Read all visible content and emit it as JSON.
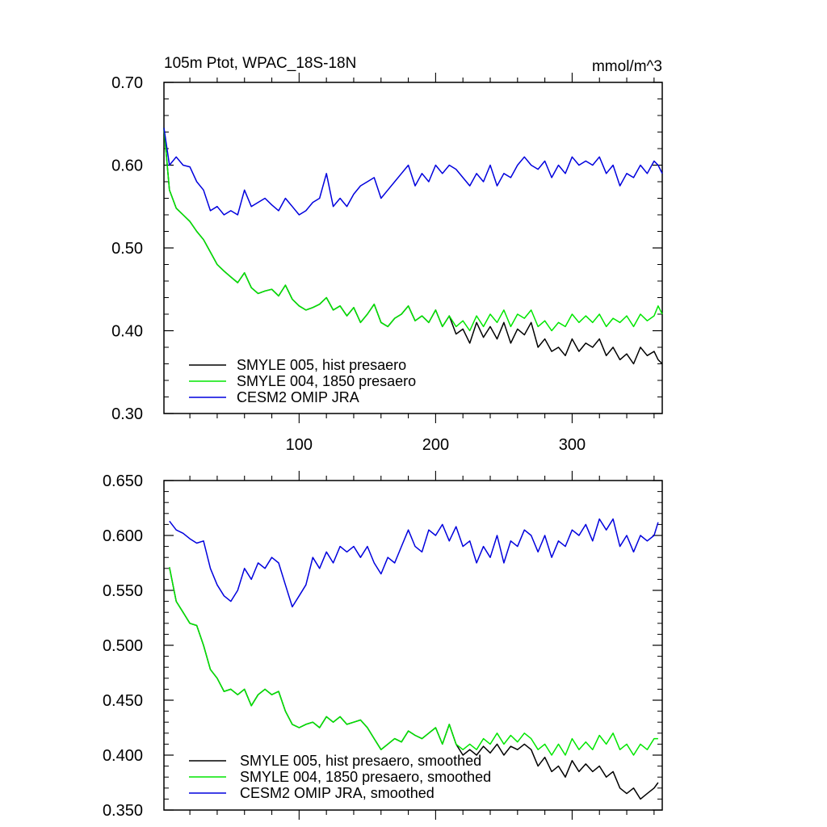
{
  "chart_data": [
    {
      "type": "line",
      "title": "105m Ptot, WPAC_18S-18N",
      "units": "mmol/m^3",
      "xlim": [
        1,
        366
      ],
      "ylim": [
        0.3,
        0.7
      ],
      "x_ticks": [
        "100",
        "200",
        "300"
      ],
      "y_ticks": [
        "0.30",
        "0.40",
        "0.50",
        "0.60",
        "0.70"
      ],
      "legend_position": "bottom-left",
      "series": [
        {
          "name": "SMYLE 005, hist presaero",
          "color": "#000000",
          "x": [
            1,
            5,
            10,
            15,
            20,
            25,
            30,
            35,
            40,
            45,
            50,
            55,
            60,
            65,
            70,
            75,
            80,
            85,
            90,
            95,
            100,
            105,
            110,
            115,
            120,
            125,
            130,
            135,
            140,
            145,
            150,
            155,
            160,
            165,
            170,
            175,
            180,
            185,
            190,
            195,
            200,
            205,
            210,
            215,
            220,
            225,
            230,
            235,
            240,
            245,
            250,
            255,
            260,
            265,
            270,
            275,
            280,
            285,
            290,
            295,
            300,
            305,
            310,
            315,
            320,
            325,
            330,
            335,
            340,
            345,
            350,
            355,
            360,
            363,
            366
          ],
          "y": [
            0.645,
            0.57,
            0.548,
            0.54,
            0.532,
            0.52,
            0.51,
            0.495,
            0.48,
            0.472,
            0.465,
            0.458,
            0.47,
            0.452,
            0.445,
            0.448,
            0.45,
            0.442,
            0.455,
            0.438,
            0.43,
            0.425,
            0.428,
            0.432,
            0.44,
            0.425,
            0.43,
            0.418,
            0.428,
            0.41,
            0.42,
            0.432,
            0.41,
            0.405,
            0.415,
            0.42,
            0.43,
            0.412,
            0.418,
            0.41,
            0.425,
            0.405,
            0.418,
            0.396,
            0.402,
            0.385,
            0.41,
            0.392,
            0.405,
            0.39,
            0.41,
            0.385,
            0.402,
            0.395,
            0.41,
            0.38,
            0.39,
            0.375,
            0.38,
            0.37,
            0.39,
            0.375,
            0.385,
            0.38,
            0.39,
            0.37,
            0.38,
            0.365,
            0.372,
            0.36,
            0.38,
            0.37,
            0.375,
            0.365,
            0.36
          ]
        },
        {
          "name": "SMYLE 004, 1850 presaero",
          "color": "#00e600",
          "x": [
            1,
            5,
            10,
            15,
            20,
            25,
            30,
            35,
            40,
            45,
            50,
            55,
            60,
            65,
            70,
            75,
            80,
            85,
            90,
            95,
            100,
            105,
            110,
            115,
            120,
            125,
            130,
            135,
            140,
            145,
            150,
            155,
            160,
            165,
            170,
            175,
            180,
            185,
            190,
            195,
            200,
            205,
            210,
            215,
            220,
            225,
            230,
            235,
            240,
            245,
            250,
            255,
            260,
            265,
            270,
            275,
            280,
            285,
            290,
            295,
            300,
            305,
            310,
            315,
            320,
            325,
            330,
            335,
            340,
            345,
            350,
            355,
            360,
            363,
            366
          ],
          "y": [
            0.645,
            0.57,
            0.548,
            0.54,
            0.532,
            0.52,
            0.51,
            0.495,
            0.48,
            0.472,
            0.465,
            0.458,
            0.47,
            0.452,
            0.445,
            0.448,
            0.45,
            0.442,
            0.455,
            0.438,
            0.43,
            0.425,
            0.428,
            0.432,
            0.44,
            0.425,
            0.43,
            0.418,
            0.428,
            0.41,
            0.42,
            0.432,
            0.41,
            0.405,
            0.415,
            0.42,
            0.43,
            0.412,
            0.418,
            0.41,
            0.425,
            0.405,
            0.418,
            0.405,
            0.412,
            0.4,
            0.418,
            0.405,
            0.42,
            0.41,
            0.425,
            0.405,
            0.42,
            0.415,
            0.425,
            0.405,
            0.412,
            0.4,
            0.41,
            0.405,
            0.42,
            0.41,
            0.418,
            0.41,
            0.42,
            0.405,
            0.415,
            0.41,
            0.418,
            0.405,
            0.42,
            0.412,
            0.418,
            0.43,
            0.42
          ]
        },
        {
          "name": "CESM2 OMIP JRA",
          "color": "#0000dd",
          "x": [
            1,
            5,
            10,
            15,
            20,
            25,
            30,
            35,
            40,
            45,
            50,
            55,
            60,
            65,
            70,
            75,
            80,
            85,
            90,
            95,
            100,
            105,
            110,
            115,
            120,
            125,
            130,
            135,
            140,
            145,
            150,
            155,
            160,
            165,
            170,
            175,
            180,
            185,
            190,
            195,
            200,
            205,
            210,
            215,
            220,
            225,
            230,
            235,
            240,
            245,
            250,
            255,
            260,
            265,
            270,
            275,
            280,
            285,
            290,
            295,
            300,
            305,
            310,
            315,
            320,
            325,
            330,
            335,
            340,
            345,
            350,
            355,
            360,
            363,
            366
          ],
          "y": [
            0.645,
            0.6,
            0.61,
            0.6,
            0.598,
            0.58,
            0.57,
            0.545,
            0.55,
            0.54,
            0.545,
            0.54,
            0.57,
            0.55,
            0.555,
            0.56,
            0.552,
            0.545,
            0.56,
            0.55,
            0.54,
            0.545,
            0.555,
            0.56,
            0.59,
            0.55,
            0.56,
            0.55,
            0.565,
            0.575,
            0.58,
            0.585,
            0.56,
            0.57,
            0.58,
            0.59,
            0.6,
            0.575,
            0.59,
            0.58,
            0.6,
            0.59,
            0.6,
            0.595,
            0.585,
            0.575,
            0.59,
            0.58,
            0.6,
            0.575,
            0.59,
            0.585,
            0.6,
            0.61,
            0.6,
            0.595,
            0.605,
            0.585,
            0.6,
            0.59,
            0.61,
            0.6,
            0.605,
            0.6,
            0.61,
            0.59,
            0.6,
            0.575,
            0.59,
            0.585,
            0.6,
            0.59,
            0.605,
            0.6,
            0.59
          ]
        }
      ]
    },
    {
      "type": "line",
      "xlim": [
        1,
        366
      ],
      "ylim": [
        0.35,
        0.65
      ],
      "x_ticks": [],
      "y_ticks": [
        "0.350",
        "0.400",
        "0.450",
        "0.500",
        "0.550",
        "0.600",
        "0.650"
      ],
      "legend_position": "bottom-left",
      "series": [
        {
          "name": "SMYLE 005, hist presaero, smoothed",
          "color": "#000000",
          "x": [
            5,
            10,
            15,
            20,
            25,
            30,
            35,
            40,
            45,
            50,
            55,
            60,
            65,
            70,
            75,
            80,
            85,
            90,
            95,
            100,
            105,
            110,
            115,
            120,
            125,
            130,
            135,
            140,
            145,
            150,
            155,
            160,
            165,
            170,
            175,
            180,
            185,
            190,
            195,
            200,
            205,
            210,
            215,
            220,
            225,
            230,
            235,
            240,
            245,
            250,
            255,
            260,
            265,
            270,
            275,
            280,
            285,
            290,
            295,
            300,
            305,
            310,
            315,
            320,
            325,
            330,
            335,
            340,
            345,
            350,
            355,
            360,
            363
          ],
          "y": [
            0.571,
            0.54,
            0.53,
            0.52,
            0.518,
            0.5,
            0.478,
            0.47,
            0.458,
            0.46,
            0.455,
            0.46,
            0.445,
            0.455,
            0.46,
            0.455,
            0.458,
            0.44,
            0.428,
            0.425,
            0.428,
            0.43,
            0.425,
            0.435,
            0.43,
            0.435,
            0.428,
            0.43,
            0.432,
            0.425,
            0.415,
            0.405,
            0.41,
            0.415,
            0.412,
            0.422,
            0.418,
            0.415,
            0.42,
            0.425,
            0.41,
            0.428,
            0.41,
            0.4,
            0.405,
            0.4,
            0.408,
            0.402,
            0.41,
            0.4,
            0.408,
            0.405,
            0.41,
            0.405,
            0.39,
            0.398,
            0.385,
            0.39,
            0.38,
            0.395,
            0.385,
            0.392,
            0.385,
            0.39,
            0.38,
            0.385,
            0.37,
            0.365,
            0.37,
            0.36,
            0.365,
            0.37,
            0.375
          ]
        },
        {
          "name": "SMYLE 004, 1850 presaero, smoothed",
          "color": "#00e600",
          "x": [
            5,
            10,
            15,
            20,
            25,
            30,
            35,
            40,
            45,
            50,
            55,
            60,
            65,
            70,
            75,
            80,
            85,
            90,
            95,
            100,
            105,
            110,
            115,
            120,
            125,
            130,
            135,
            140,
            145,
            150,
            155,
            160,
            165,
            170,
            175,
            180,
            185,
            190,
            195,
            200,
            205,
            210,
            215,
            220,
            225,
            230,
            235,
            240,
            245,
            250,
            255,
            260,
            265,
            270,
            275,
            280,
            285,
            290,
            295,
            300,
            305,
            310,
            315,
            320,
            325,
            330,
            335,
            340,
            345,
            350,
            355,
            360,
            363
          ],
          "y": [
            0.571,
            0.54,
            0.53,
            0.52,
            0.518,
            0.5,
            0.478,
            0.47,
            0.458,
            0.46,
            0.455,
            0.46,
            0.445,
            0.455,
            0.46,
            0.455,
            0.458,
            0.44,
            0.428,
            0.425,
            0.428,
            0.43,
            0.425,
            0.435,
            0.43,
            0.435,
            0.428,
            0.43,
            0.432,
            0.425,
            0.415,
            0.405,
            0.41,
            0.415,
            0.412,
            0.422,
            0.418,
            0.415,
            0.42,
            0.425,
            0.41,
            0.428,
            0.41,
            0.405,
            0.41,
            0.405,
            0.415,
            0.41,
            0.42,
            0.41,
            0.418,
            0.412,
            0.42,
            0.415,
            0.405,
            0.41,
            0.4,
            0.41,
            0.4,
            0.415,
            0.405,
            0.412,
            0.405,
            0.418,
            0.41,
            0.42,
            0.405,
            0.41,
            0.4,
            0.41,
            0.405,
            0.415,
            0.415
          ]
        },
        {
          "name": "CESM2 OMIP JRA, smoothed",
          "color": "#0000dd",
          "x": [
            5,
            10,
            15,
            20,
            25,
            30,
            35,
            40,
            45,
            50,
            55,
            60,
            65,
            70,
            75,
            80,
            85,
            90,
            95,
            100,
            105,
            110,
            115,
            120,
            125,
            130,
            135,
            140,
            145,
            150,
            155,
            160,
            165,
            170,
            175,
            180,
            185,
            190,
            195,
            200,
            205,
            210,
            215,
            220,
            225,
            230,
            235,
            240,
            245,
            250,
            255,
            260,
            265,
            270,
            275,
            280,
            285,
            290,
            295,
            300,
            305,
            310,
            315,
            320,
            325,
            330,
            335,
            340,
            345,
            350,
            355,
            360,
            363
          ],
          "y": [
            0.613,
            0.605,
            0.602,
            0.597,
            0.593,
            0.595,
            0.57,
            0.555,
            0.545,
            0.54,
            0.55,
            0.57,
            0.56,
            0.575,
            0.57,
            0.58,
            0.575,
            0.555,
            0.535,
            0.545,
            0.555,
            0.58,
            0.57,
            0.585,
            0.575,
            0.59,
            0.585,
            0.59,
            0.58,
            0.59,
            0.575,
            0.565,
            0.58,
            0.575,
            0.59,
            0.605,
            0.59,
            0.585,
            0.605,
            0.6,
            0.61,
            0.595,
            0.608,
            0.59,
            0.595,
            0.575,
            0.59,
            0.58,
            0.6,
            0.575,
            0.595,
            0.59,
            0.605,
            0.6,
            0.585,
            0.6,
            0.58,
            0.595,
            0.59,
            0.605,
            0.6,
            0.61,
            0.595,
            0.615,
            0.605,
            0.615,
            0.59,
            0.6,
            0.585,
            0.6,
            0.595,
            0.6,
            0.612
          ]
        }
      ]
    }
  ]
}
